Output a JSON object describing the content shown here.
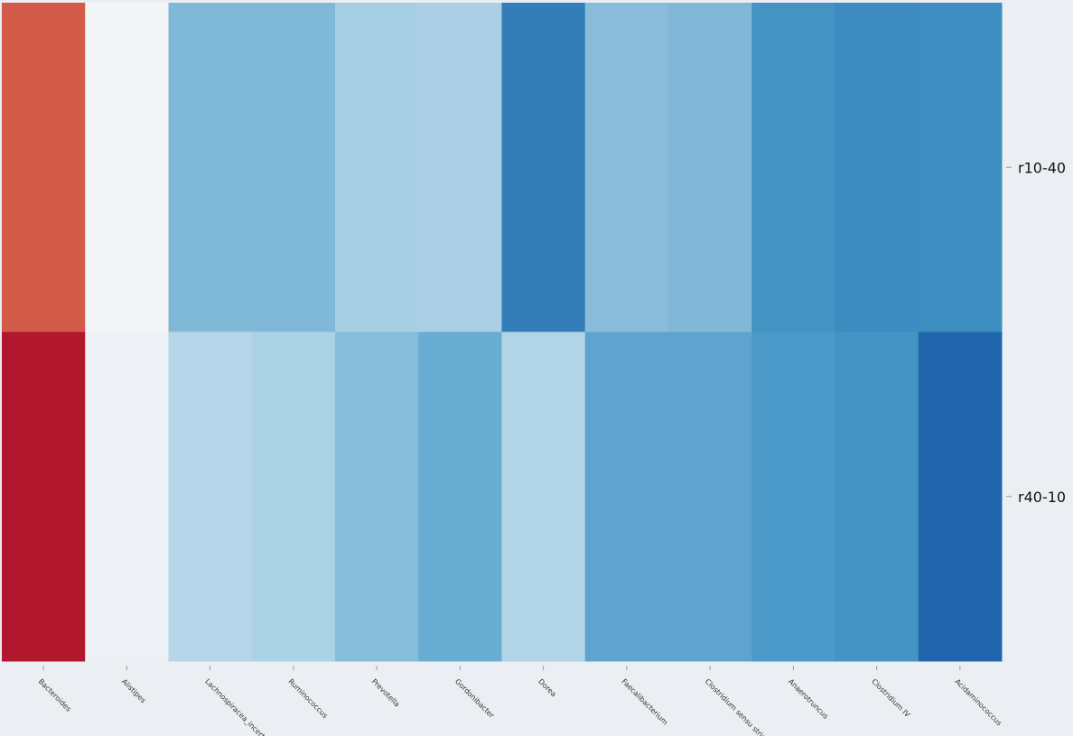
{
  "chart_data": {
    "type": "heatmap",
    "columns": [
      "Bacteroides",
      "Alistipes",
      "Lachnospiracea_incertae_sedis",
      "Ruminococcus",
      "Prevotella",
      "Gordonibacter",
      "Dorea",
      "Faecalibacterium",
      "Clostridium sensu stricto",
      "Anaerotruncus",
      "Clostridium IV",
      "Acidaminococcus"
    ],
    "rows": [
      "r10-40",
      "r40-10"
    ],
    "colormap": "RdBu_r",
    "cell_colors": [
      [
        "#d45b4a",
        "#f4f5f6",
        "#80b9d8",
        "#80b9d8",
        "#a6cfe4",
        "#abd0e5",
        "#337eb8",
        "#88bcda",
        "#82b8d7",
        "#4393c3",
        "#3d8bc0",
        "#3f8ec2"
      ],
      [
        "#b1182d",
        "#edf1f5",
        "#b5d6e8",
        "#acd2e6",
        "#86bdda",
        "#6aadd3",
        "#b1d4e7",
        "#5ea4ce",
        "#5ea4ce",
        "#4b99c8",
        "#4393c3",
        "#2166ac"
      ]
    ],
    "colorbar": false
  }
}
